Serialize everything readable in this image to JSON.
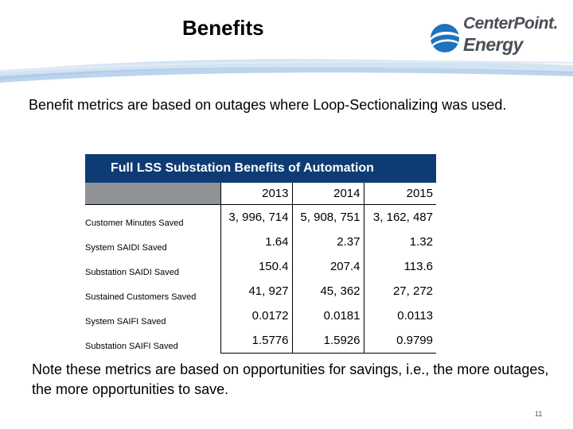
{
  "slide": {
    "title": "Benefits",
    "intro": "Benefit metrics are based on outages where Loop-Sectionalizing was used.",
    "note": "Note these metrics are based on opportunities for savings, i.e., the more outages, the more opportunities to save.",
    "page_number": "11"
  },
  "logo": {
    "line1": "CenterPoint.",
    "line2": "Energy",
    "brand_color": "#1e73be",
    "text_color": "#4a4f55"
  },
  "table": {
    "title": "Full LSS Substation Benefits of Automation",
    "years": [
      "2013",
      "2014",
      "2015"
    ],
    "rows": [
      {
        "label": "Customer Minutes Saved",
        "values": [
          "3, 996, 714",
          "5, 908, 751",
          "3, 162, 487"
        ]
      },
      {
        "label": "System SAIDI Saved",
        "values": [
          "1.64",
          "2.37",
          "1.32"
        ]
      },
      {
        "label": "Substation SAIDI Saved",
        "values": [
          "150.4",
          "207.4",
          "113.6"
        ]
      },
      {
        "label": "Sustained Customers Saved",
        "values": [
          "41, 927",
          "45, 362",
          "27, 272"
        ]
      },
      {
        "label": "System SAIFI Saved",
        "values": [
          "0.0172",
          "0.0181",
          "0.0113"
        ]
      },
      {
        "label": "Substation SAIFI Saved",
        "values": [
          "1.5776",
          "1.5926",
          "0.9799"
        ]
      }
    ],
    "header_color": "#0e3b73"
  }
}
